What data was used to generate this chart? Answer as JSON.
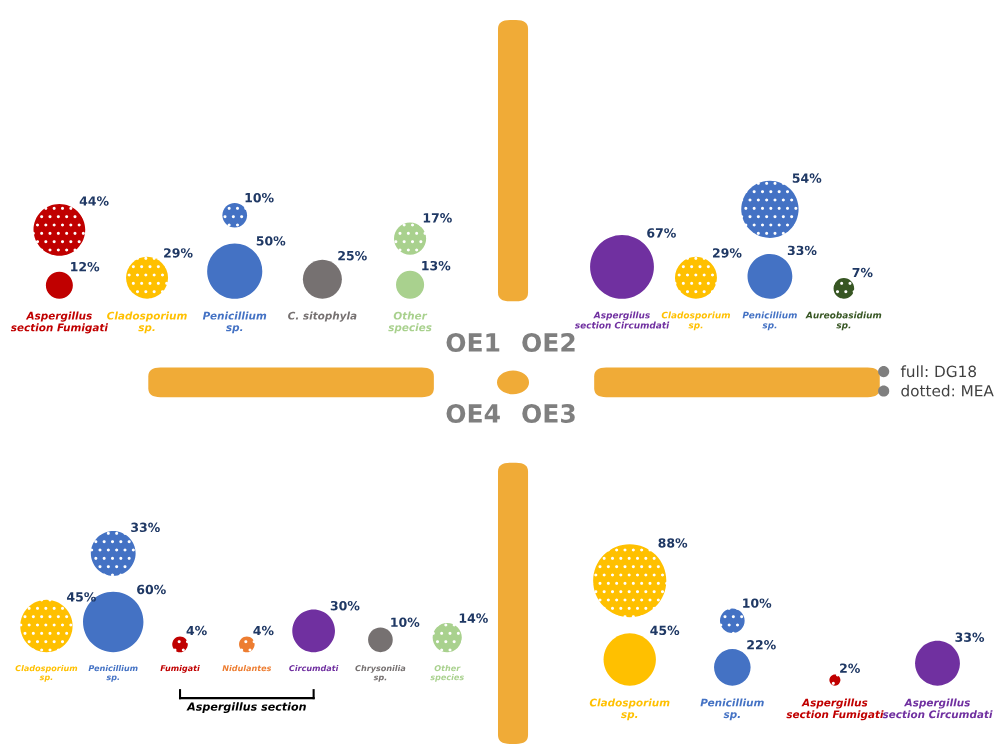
{
  "chart_data": [
    {
      "type": "other",
      "title": "OE1",
      "categories": [
        "Aspergillus section Fumigati",
        "Cladosporium sp.",
        "Penicillium sp.",
        "C. sitophyla",
        "Other species"
      ],
      "colors": [
        "#c00000",
        "#ffc000",
        "#4472c4",
        "#767171",
        "#a9d18e"
      ],
      "series": [
        {
          "name": "full: DG18",
          "values": [
            12,
            null,
            50,
            25,
            13
          ],
          "value_labels": [
            "12%",
            null,
            "50%",
            "25%",
            "13%"
          ]
        },
        {
          "name": "dotted: MEA",
          "values": [
            44,
            29,
            10,
            null,
            17
          ],
          "value_labels": [
            "44%",
            "29%",
            "10%",
            null,
            "17%"
          ]
        }
      ],
      "legend": "right"
    },
    {
      "type": "other",
      "title": "OE2",
      "categories": [
        "Aspergillus section Circumdati",
        "Cladosporium sp.",
        "Penicillium sp.",
        "Aureobasidium sp."
      ],
      "colors": [
        "#7030a0",
        "#ffc000",
        "#4472c4",
        "#375623"
      ],
      "series": [
        {
          "values": [
            67,
            null,
            33,
            null
          ],
          "value_labels": [
            "67%",
            null,
            "33%",
            null
          ]
        },
        {
          "values": [
            null,
            29,
            54,
            7
          ],
          "value_labels": [
            null,
            "29%",
            "54%",
            "7%"
          ]
        }
      ]
    },
    {
      "type": "other",
      "title": "OE3",
      "categories": [
        "Cladosporium sp.",
        "Penicillium sp.",
        "Aspergillus section Fumigati",
        "Aspergillus section Circumdati"
      ],
      "colors": [
        "#ffc000",
        "#4472c4",
        "#c00000",
        "#7030a0"
      ],
      "series": [
        {
          "values": [
            45,
            22,
            null,
            33
          ],
          "value_labels": [
            "45%",
            "22%",
            null,
            "33%"
          ]
        },
        {
          "values": [
            88,
            10,
            2,
            null
          ],
          "value_labels": [
            "88%",
            "10%",
            "2%",
            null
          ]
        }
      ]
    },
    {
      "type": "other",
      "title": "OE4",
      "categories": [
        "Cladosporium sp.",
        "Penicillium sp.",
        "Fumigati",
        "Nidulantes",
        "Circumdati",
        "Chrysonilia sp.",
        "Other species"
      ],
      "colors": [
        "#ffc000",
        "#4472c4",
        "#c00000",
        "#ed7d31",
        "#7030a0",
        "#767171",
        "#a9d18e"
      ],
      "series": [
        {
          "values": [
            null,
            60,
            null,
            null,
            30,
            10,
            null
          ],
          "value_labels": [
            null,
            "60%",
            null,
            null,
            "30%",
            "10%",
            null
          ]
        },
        {
          "values": [
            45,
            33,
            4,
            4,
            null,
            null,
            14
          ],
          "value_labels": [
            "45%",
            "33%",
            "4%",
            "4%",
            null,
            null,
            "14%"
          ]
        }
      ],
      "annotations": [
        "Aspergillus section"
      ]
    }
  ]
}
